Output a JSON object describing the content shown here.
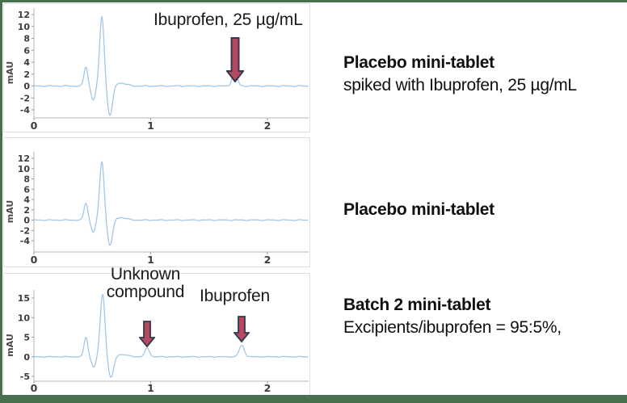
{
  "frame": {
    "color": "#48704f"
  },
  "arrow_style": {
    "fill": "#b8485f",
    "stroke": "#333a4f"
  },
  "chart_data": [
    {
      "type": "line",
      "title": "",
      "ylabel": "mAU",
      "xlabel": "",
      "x_ticks": [
        0,
        1,
        2
      ],
      "y_ticks": [
        12,
        10,
        8,
        6,
        4,
        2,
        0,
        -2,
        -4
      ],
      "x_range": [
        0,
        2.35
      ],
      "y_range_shown": [
        -5.5,
        12.8
      ],
      "grid": false,
      "line_color": "#a5c7e5",
      "peaks": [
        {
          "x": 0.445,
          "h": 3.2,
          "w": 0.016
        },
        {
          "x": 0.508,
          "h": -2.3,
          "w": 0.018
        },
        {
          "x": 0.582,
          "h": 11.7,
          "w": 0.019
        },
        {
          "x": 0.652,
          "h": -5.0,
          "w": 0.022
        },
        {
          "x": 0.74,
          "h": 0.5,
          "w": 0.05
        },
        {
          "x": 1.72,
          "h": 3.0,
          "w": 0.02
        }
      ],
      "annotations": [
        {
          "line1": "Ibuprofen, 25 µg/mL",
          "line2": "",
          "peak_x": 1.72
        }
      ]
    },
    {
      "type": "line",
      "title": "",
      "ylabel": "mAU",
      "xlabel": "",
      "x_ticks": [
        0,
        1,
        2
      ],
      "y_ticks": [
        12,
        10,
        8,
        6,
        4,
        2,
        0,
        -2,
        -4
      ],
      "x_range": [
        0,
        2.35
      ],
      "y_range_shown": [
        -5.5,
        12.8
      ],
      "grid": false,
      "line_color": "#a5c7e5",
      "peaks": [
        {
          "x": 0.445,
          "h": 3.3,
          "w": 0.016
        },
        {
          "x": 0.508,
          "h": -2.3,
          "w": 0.018
        },
        {
          "x": 0.582,
          "h": 11.4,
          "w": 0.019
        },
        {
          "x": 0.652,
          "h": -5.0,
          "w": 0.022
        },
        {
          "x": 0.74,
          "h": 0.5,
          "w": 0.05
        }
      ],
      "annotations": []
    },
    {
      "type": "line",
      "title": "",
      "ylabel": "mAU",
      "xlabel": "",
      "x_ticks": [
        0,
        1,
        2
      ],
      "y_ticks": [
        15,
        10,
        5,
        0,
        -5
      ],
      "x_range": [
        0,
        2.35
      ],
      "y_range_shown": [
        -6.0,
        17.5
      ],
      "grid": false,
      "line_color": "#a5c7e5",
      "peaks": [
        {
          "x": 0.445,
          "h": 5.0,
          "w": 0.016
        },
        {
          "x": 0.512,
          "h": -2.6,
          "w": 0.018
        },
        {
          "x": 0.588,
          "h": 16.0,
          "w": 0.02
        },
        {
          "x": 0.66,
          "h": -5.4,
          "w": 0.023
        },
        {
          "x": 0.75,
          "h": 0.6,
          "w": 0.05
        },
        {
          "x": 0.97,
          "h": 2.2,
          "w": 0.02
        },
        {
          "x": 1.78,
          "h": 2.9,
          "w": 0.022
        }
      ],
      "annotations": [
        {
          "line1": "Unknown",
          "line2": "compound",
          "peak_x": 0.97
        },
        {
          "line1": "Ibuprofen",
          "line2": "",
          "peak_x": 1.78
        }
      ]
    }
  ],
  "side_labels": [
    {
      "title": "Placebo mini-tablet",
      "line2": "spiked with Ibuprofen, 25 µg/mL"
    },
    {
      "title": "Placebo mini-tablet",
      "line2": ""
    },
    {
      "title": "Batch 2 mini-tablet",
      "line2": "Excipients/ibuprofen = 95:5%,"
    }
  ]
}
